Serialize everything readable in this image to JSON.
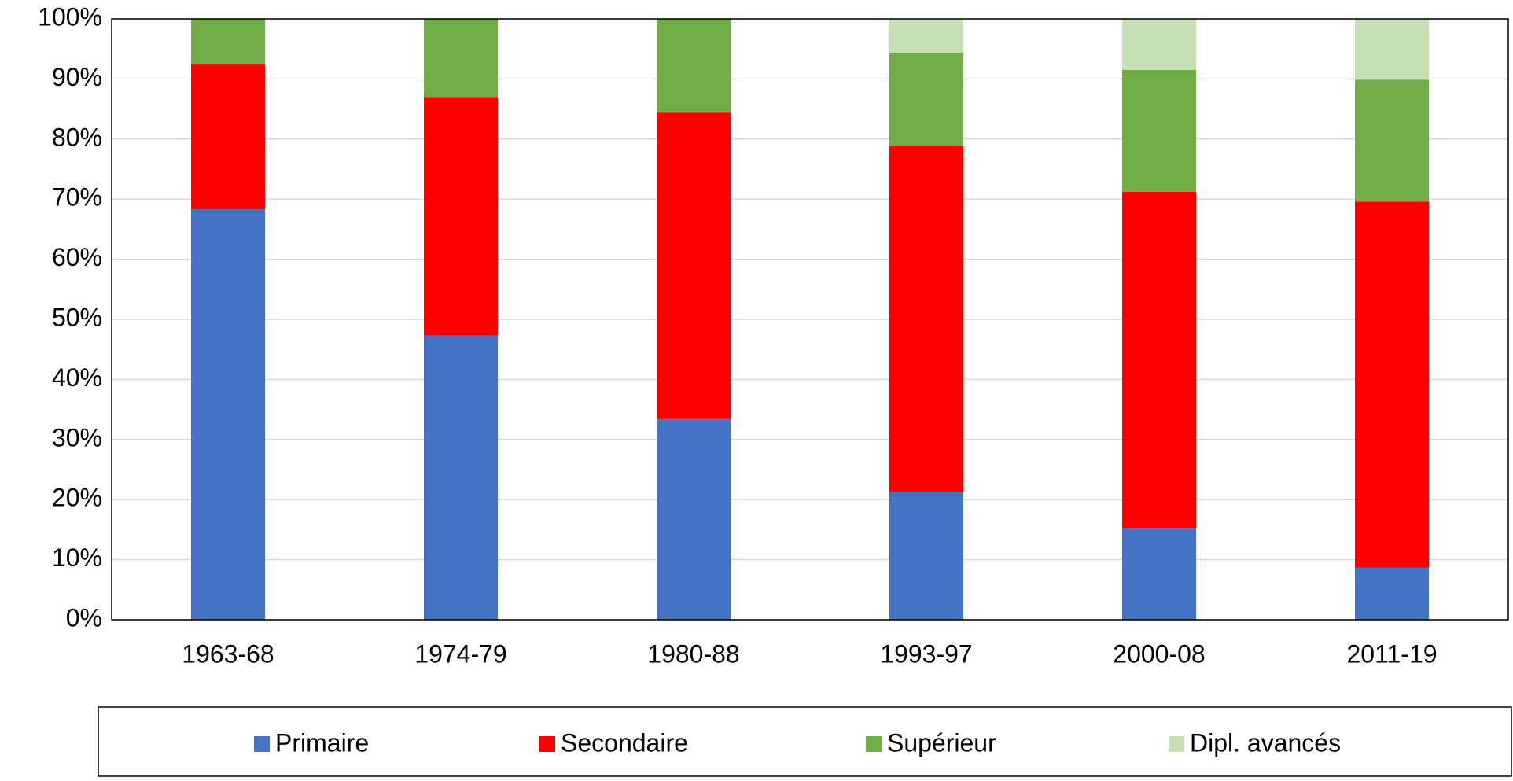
{
  "chart_data": {
    "type": "stacked_bar",
    "categories": [
      "1963-68",
      "1974-79",
      "1980-88",
      "1993-97",
      "2000-08",
      "2011-19"
    ],
    "series": [
      {
        "name": "Primaire",
        "color": "#4472c4",
        "values": [
          68.3,
          47.3,
          33.4,
          21.2,
          15.3,
          8.7
        ]
      },
      {
        "name": "Secondaire",
        "color": "#ff0000",
        "values": [
          24.1,
          39.7,
          51.0,
          57.7,
          55.9,
          60.9
        ]
      },
      {
        "name": "Supérieur",
        "color": "#70ad47",
        "values": [
          7.6,
          13.0,
          15.6,
          15.5,
          20.3,
          20.3
        ]
      },
      {
        "name": "Dipl. avancés",
        "color": "#c5e0b4",
        "values": [
          0,
          0,
          0,
          5.6,
          8.5,
          10.1
        ]
      }
    ],
    "ylim": [
      0,
      100
    ],
    "yticks": [
      {
        "value": 0,
        "label": "0%"
      },
      {
        "value": 10,
        "label": "10%"
      },
      {
        "value": 20,
        "label": "20%"
      },
      {
        "value": 30,
        "label": "30%"
      },
      {
        "value": 40,
        "label": "40%"
      },
      {
        "value": 50,
        "label": "50%"
      },
      {
        "value": 60,
        "label": "60%"
      },
      {
        "value": 70,
        "label": "70%"
      },
      {
        "value": 80,
        "label": "80%"
      },
      {
        "value": 90,
        "label": "90%"
      },
      {
        "value": 100,
        "label": "100%"
      }
    ],
    "grid": true,
    "legend": "bottom"
  }
}
